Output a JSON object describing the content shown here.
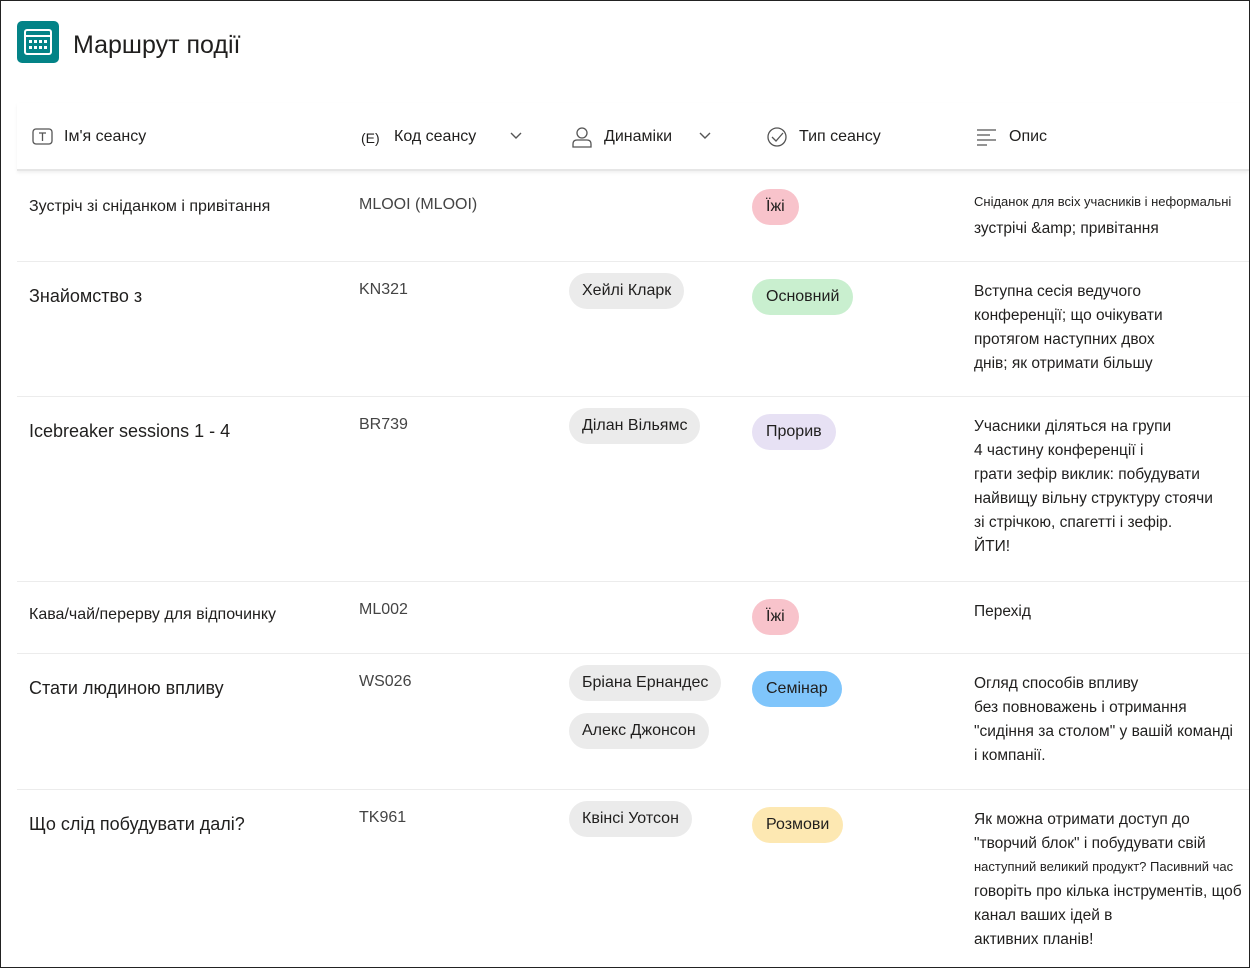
{
  "header": {
    "title": "Маршрут  події"
  },
  "table": {
    "columns": [
      {
        "label": "Ім'я сеансу"
      },
      {
        "icon_text": "(E)",
        "label": "Код сеансу"
      },
      {
        "label": "Динаміки"
      },
      {
        "label": "Тип сеансу"
      },
      {
        "label": "Опис"
      }
    ],
    "rows": [
      {
        "name": "Зустріч зі сніданком і привітання",
        "code": "MLOOI (MLOOI)",
        "speakers": [],
        "type": "Їжі",
        "type_color": "#f8c3cb",
        "description": [
          "Сніданок для всіх учасників і неформальні",
          "зустрічі &amp; привітання"
        ]
      },
      {
        "name": "Знайомство з",
        "code": "KN321",
        "speakers": [
          "Хейлі Кларк"
        ],
        "type": "Основний",
        "type_color": "#c9efcf",
        "description": [
          "Вступна сесія ведучого",
          "конференції; що очікувати",
          "протягом наступних двох",
          "днів; як отримати більшу"
        ]
      },
      {
        "name": "Icebreaker sessions 1 - 4",
        "code": "BR739",
        "speakers": [
          "Ділан Вільямс"
        ],
        "type": "Прорив",
        "type_color": "#e7e1f4",
        "description": [
          "Учасники діляться на групи",
          "4 частину конференції і",
          "грати зефір виклик: побудувати",
          "найвищу вільну структуру стоячи",
          "зі стрічкою, спагетті і зефір.",
          "ЙТИ!"
        ]
      },
      {
        "name": "Кава/чай/перерву для відпочинку",
        "code": "ML002",
        "speakers": [],
        "type": "Їжі",
        "type_color": "#f8c3cb",
        "description": [
          "Перехід"
        ]
      },
      {
        "name": "Стати людиною впливу",
        "code": "WS026",
        "speakers": [
          "Бріана  Ернандес",
          "Алекс Джонсон"
        ],
        "type": "Семінар",
        "type_color": "#7fc5fb",
        "description": [
          "Огляд способів впливу",
          "без повноважень і отримання",
          "\"сидіння за столом\" у вашій команді",
          "і компанії."
        ]
      },
      {
        "name": "Що слід побудувати далі?",
        "code": "TK961",
        "speakers": [
          "Квінсі Уотсон"
        ],
        "type": "Розмови",
        "type_color": "#fde8b2",
        "description": [
          "Як можна отримати доступ до",
          "\"творчий блок\" і побудувати свій",
          "наступний великий продукт? Пасивний час",
          "говоріть про кілька інструментів, щоб",
          "канал ваших ідей в",
          "активних планів!"
        ]
      }
    ]
  }
}
